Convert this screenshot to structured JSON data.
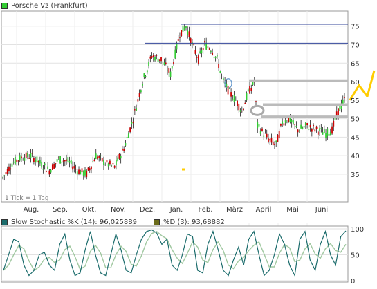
{
  "price_legend": {
    "label": "Porsche Vz (Frankfurt)",
    "color": "#33cc33"
  },
  "stoch_legend": {
    "k_label": "Slow Stochastic %K (14): 96,025889",
    "k_color": "#1a6b6b",
    "d_label": "%D (3): 93,68882",
    "d_color": "#6b6b1a"
  },
  "tick_note": "1 Tick = 1 Tag",
  "colors": {
    "up": "#33cc33",
    "down": "#cc0000",
    "resistance": "#334499",
    "support": "#bbbbbb",
    "forecast": "#ffcc00",
    "k_line": "#1a6b6b",
    "d_line": "#a0c8a0"
  },
  "chart_data": [
    {
      "type": "candlestick",
      "title": "Porsche Vz (Frankfurt)",
      "x_tick_labels": [
        "Aug.",
        "Sep.",
        "Okt.",
        "Nov.",
        "Dez.",
        "Jan.",
        "Feb.",
        "März",
        "April",
        "Mai",
        "Juni"
      ],
      "y_tick_labels": [
        "35",
        "40",
        "45",
        "50",
        "55",
        "60",
        "65",
        "70",
        "75"
      ],
      "ylim": [
        32,
        77
      ],
      "grid": true,
      "price_path": [
        [
          0,
          34
        ],
        [
          6,
          38
        ],
        [
          12,
          39.5
        ],
        [
          18,
          40
        ],
        [
          24,
          38
        ],
        [
          30,
          36
        ],
        [
          36,
          39
        ],
        [
          42,
          38.5
        ],
        [
          48,
          36
        ],
        [
          54,
          35
        ],
        [
          60,
          40
        ],
        [
          66,
          38
        ],
        [
          72,
          37
        ],
        [
          78,
          42
        ],
        [
          84,
          50
        ],
        [
          90,
          60
        ],
        [
          96,
          67
        ],
        [
          102,
          66
        ],
        [
          108,
          62
        ],
        [
          114,
          73
        ],
        [
          118,
          75
        ],
        [
          122,
          70
        ],
        [
          126,
          66
        ],
        [
          130,
          70
        ],
        [
          134,
          69
        ],
        [
          138,
          66
        ],
        [
          142,
          60
        ],
        [
          146,
          57
        ],
        [
          150,
          55
        ],
        [
          154,
          52
        ],
        [
          158,
          57
        ],
        [
          162,
          60
        ],
        [
          164,
          48
        ],
        [
          168,
          46
        ],
        [
          172,
          44
        ],
        [
          176,
          43
        ],
        [
          180,
          49
        ],
        [
          184,
          50
        ],
        [
          190,
          47
        ],
        [
          196,
          48
        ],
        [
          202,
          47
        ],
        [
          208,
          46
        ],
        [
          212,
          47
        ],
        [
          216,
          52
        ],
        [
          220,
          55
        ]
      ],
      "resistance_levels": [
        75.5,
        70.4,
        64.2
      ],
      "support_levels": [
        60.3,
        53.8,
        50.5
      ],
      "forecast_path": [
        [
          0,
          55
        ],
        [
          1,
          59
        ],
        [
          2,
          56
        ],
        [
          3,
          63
        ]
      ],
      "stray_mark": 36.2
    },
    {
      "type": "line",
      "y_tick_labels": [
        "0",
        "50",
        "100"
      ],
      "ylim": [
        0,
        100
      ],
      "series": [
        {
          "name": "Slow Stochastic %K (14)",
          "last_value": "96,025889",
          "values": [
            20,
            50,
            80,
            75,
            30,
            10,
            20,
            50,
            55,
            30,
            20,
            70,
            90,
            40,
            10,
            15,
            60,
            95,
            50,
            15,
            10,
            50,
            90,
            60,
            20,
            15,
            50,
            80,
            95,
            98,
            92,
            70,
            80,
            30,
            20,
            50,
            90,
            85,
            20,
            15,
            70,
            95,
            60,
            20,
            10,
            40,
            65,
            30,
            80,
            95,
            50,
            10,
            20,
            50,
            90,
            70,
            30,
            10,
            80,
            95,
            40,
            20,
            70,
            95,
            50,
            30,
            85,
            96
          ]
        },
        {
          "name": "%D (3)",
          "last_value": "93,68882"
        }
      ]
    }
  ]
}
